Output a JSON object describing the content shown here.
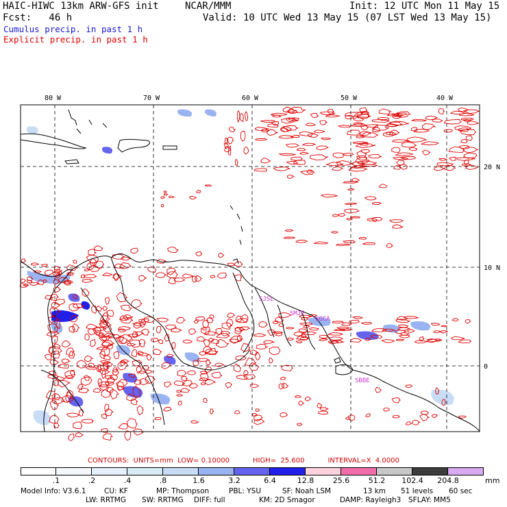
{
  "header": {
    "model_title": "HAIC-HIWC 13km ARW-GFS init",
    "org": "NCAR/MMM",
    "init": "Init: 12 UTC Mon 11 May 15",
    "fcst": "Fcst:   46 h",
    "valid": "Valid: 10 UTC Wed 13 May 15 (07 LST Wed 13 May 15)"
  },
  "legend": {
    "cumulus": "Cumulus precip. in past 1 h",
    "explicit": "Explicit precip. in past 1 h",
    "cumulus_color": "#1a1acc",
    "explicit_color": "#dd0000"
  },
  "map": {
    "lon_labels": [
      "80 W",
      "70 W",
      "60 W",
      "50 W",
      "40 W"
    ],
    "lat_labels": [
      "20 N",
      "10 N",
      "0"
    ],
    "stations": [
      "SJSL",
      "SMJP",
      "SOCA",
      "SBBE"
    ]
  },
  "contours_line": {
    "title": "CONTOURS:  UNITS=mm  LOW= 0.10000",
    "high": "HIGH=  25.600",
    "interval": "INTERVAL=X  4.0000"
  },
  "colorbar": {
    "colors": [
      "#ffffff",
      "#f4f8fc",
      "#e6f0fa",
      "#d8ecf6",
      "#c8dcf6",
      "#9ab4f2",
      "#6464ee",
      "#2020e8",
      "#ffd2dc",
      "#f06eaa",
      "#c8c8c8",
      "#3c3c3c",
      "#d8aaf2"
    ],
    "ticks": [
      ".1",
      ".2",
      ".4",
      ".8",
      "1.6",
      "3.2",
      "6.4",
      "12.8",
      "25.6",
      "51.2",
      "102.4",
      "204.8"
    ],
    "unit": "mm"
  },
  "model_info": {
    "line1": [
      "Model Info: V3.6.1",
      "CU: KF",
      "MP: Thompson",
      "PBL: YSU",
      "SF: Noah LSM",
      "13 km",
      "51 levels",
      "60 sec"
    ],
    "line2": [
      "LW: RRTMG",
      "SW: RRTMG",
      "DIFF: full",
      "KM: 2D Smagor",
      "DAMP: Rayleigh3",
      "SFLAY: MM5"
    ]
  }
}
